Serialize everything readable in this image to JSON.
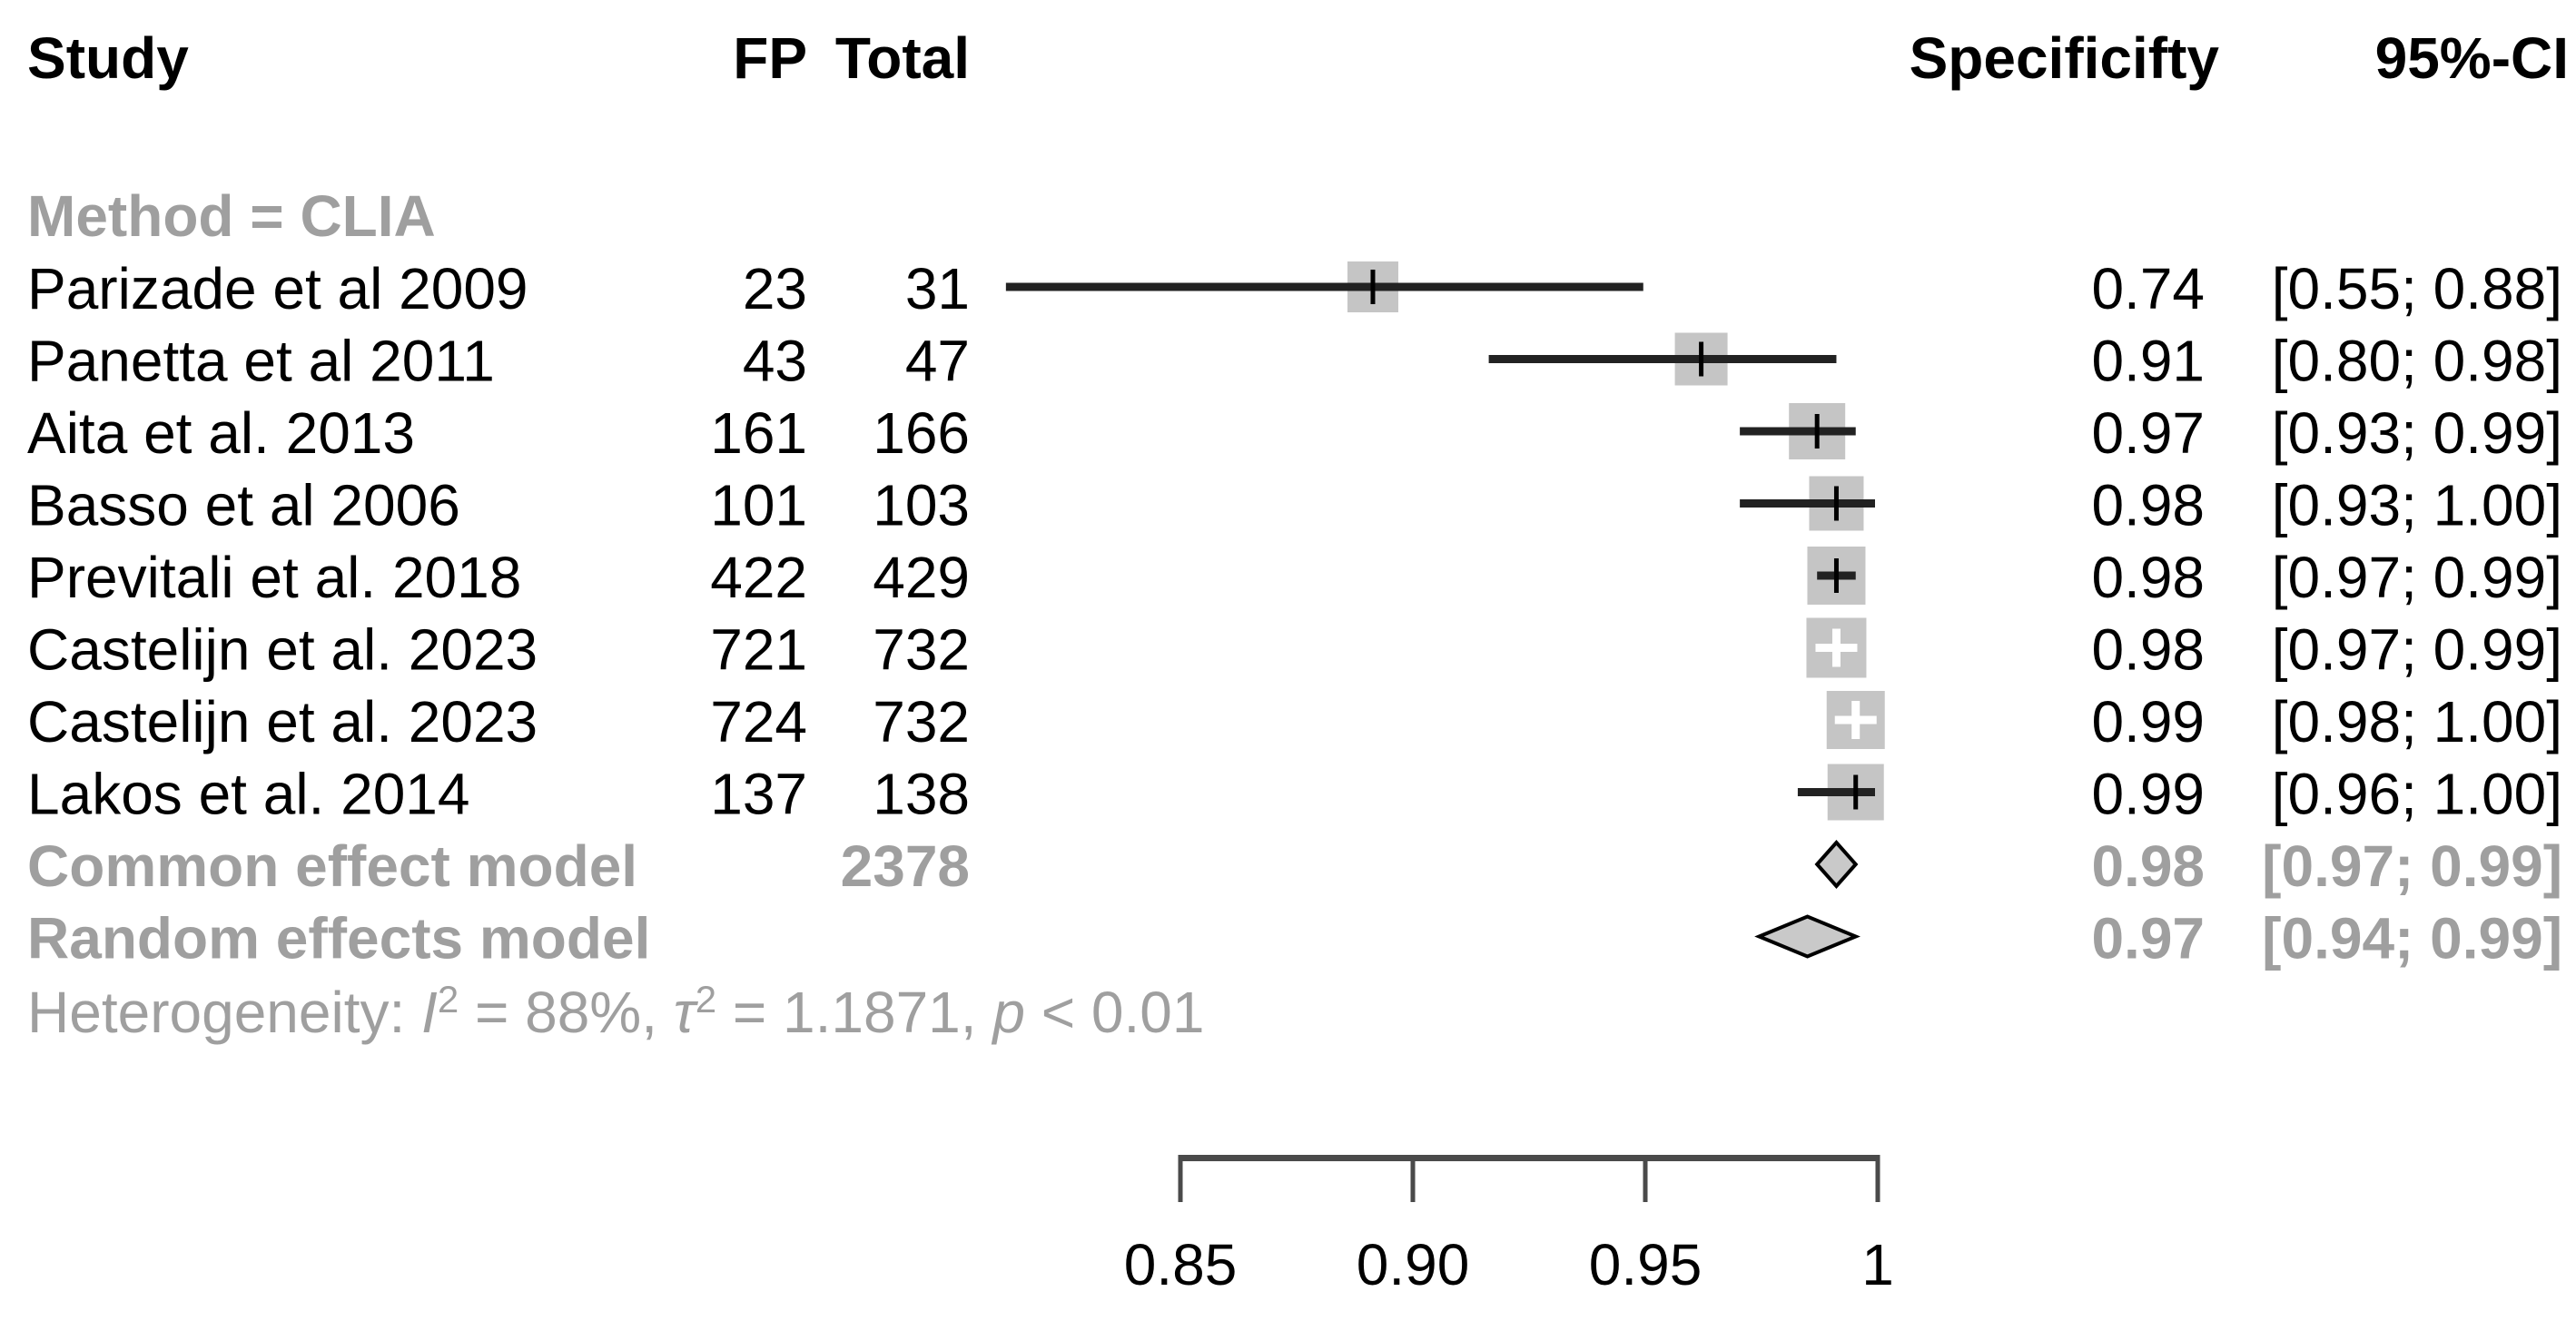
{
  "figure": {
    "kind": "forest-plot-of-specificity-meta-analysis",
    "background": "#ffffff"
  },
  "header": {
    "study": "Study",
    "fp": "FP",
    "total": "Total",
    "specificity": "Specificifty",
    "ci": "95%-CI"
  },
  "group_label": "Method = CLIA",
  "chart_data": {
    "type": "scatter",
    "subtype": "forest-plot",
    "title": "",
    "xlabel": "",
    "ylabel": "",
    "axis_range": [
      0.85,
      1.0
    ],
    "axis_tick_labels": [
      "0.85",
      "0.90",
      "0.95",
      "1"
    ],
    "axis_tick_values": [
      0.85,
      0.9,
      0.95,
      1.0
    ],
    "grid": false,
    "legend_position": "none",
    "studies": [
      {
        "study": "Parizade et al 2009",
        "fp": "23",
        "total": "31",
        "specificity": 0.74,
        "ci_lower": 0.55,
        "ci_upper": 0.88,
        "specificity_text": "0.74",
        "ci_text": "[0.55; 0.88]",
        "square_size": 56,
        "marker": "black-tick"
      },
      {
        "study": "Panetta et al 2011",
        "fp": "43",
        "total": "47",
        "specificity": 0.91,
        "ci_lower": 0.8,
        "ci_upper": 0.98,
        "specificity_text": "0.91",
        "ci_text": "[0.80; 0.98]",
        "square_size": 58,
        "marker": "black-tick"
      },
      {
        "study": "Aita et al. 2013",
        "fp": "161",
        "total": "166",
        "specificity": 0.97,
        "ci_lower": 0.93,
        "ci_upper": 0.99,
        "specificity_text": "0.97",
        "ci_text": "[0.93; 0.99]",
        "square_size": 62,
        "marker": "black-tick"
      },
      {
        "study": "Basso et al 2006",
        "fp": "101",
        "total": "103",
        "specificity": 0.98,
        "ci_lower": 0.93,
        "ci_upper": 1.0,
        "specificity_text": "0.98",
        "ci_text": "[0.93; 1.00]",
        "square_size": 60,
        "marker": "black-tick"
      },
      {
        "study": "Previtali et al. 2018",
        "fp": "422",
        "total": "429",
        "specificity": 0.98,
        "ci_lower": 0.97,
        "ci_upper": 0.99,
        "specificity_text": "0.98",
        "ci_text": "[0.97; 0.99]",
        "square_size": 64,
        "marker": "black-tick"
      },
      {
        "study": "Castelijn et al. 2023",
        "fp": "721",
        "total": "732",
        "specificity": 0.98,
        "ci_lower": 0.97,
        "ci_upper": 0.99,
        "specificity_text": "0.98",
        "ci_text": "[0.97; 0.99]",
        "square_size": 66,
        "marker": "white-cross"
      },
      {
        "study": "Castelijn et al. 2023",
        "fp": "724",
        "total": "732",
        "specificity": 0.99,
        "ci_lower": 0.98,
        "ci_upper": 1.0,
        "specificity_text": "0.99",
        "ci_text": "[0.98; 1.00]",
        "square_size": 64,
        "marker": "white-cross"
      },
      {
        "study": "Lakos et al. 2014",
        "fp": "137",
        "total": "138",
        "specificity": 0.99,
        "ci_lower": 0.96,
        "ci_upper": 1.0,
        "specificity_text": "0.99",
        "ci_text": "[0.96; 1.00]",
        "square_size": 62,
        "marker": "black-tick"
      }
    ],
    "summaries": [
      {
        "label": "Common effect model",
        "total": "2378",
        "specificity": 0.98,
        "ci_lower": 0.97,
        "ci_upper": 0.99,
        "specificity_text": "0.98",
        "ci_text": "[0.97; 0.99]",
        "shape": "diamond",
        "diamond_half_height": 24
      },
      {
        "label": "Random effects model",
        "total": "",
        "specificity": 0.97,
        "ci_lower": 0.94,
        "ci_upper": 0.99,
        "specificity_text": "0.97",
        "ci_text": "[0.94; 0.99]",
        "shape": "diamond",
        "diamond_half_height": 22
      }
    ],
    "heterogeneity": {
      "text_plain": "Heterogeneity: I² = 88%, τ² = 1.1871, p < 0.01",
      "parts": [
        {
          "t": "Heterogeneity: "
        },
        {
          "t": "I",
          "style": "italic"
        },
        {
          "t": "2",
          "style": "sup"
        },
        {
          "t": " = 88%, "
        },
        {
          "t": "τ",
          "style": "italic"
        },
        {
          "t": "2",
          "style": "sup"
        },
        {
          "t": " = 1.1871, "
        },
        {
          "t": "p",
          "style": "italic"
        },
        {
          "t": " < 0.01"
        }
      ]
    }
  },
  "colors": {
    "text": "#000000",
    "muted_text": "#9f9f9f",
    "square_fill": "#c5c5c5",
    "ci_line": "#222222",
    "point_tick": "#000000",
    "white_cross": "#ffffff",
    "axis": "#4a4a4a",
    "diamond_fill": "#c9c9c9",
    "diamond_stroke": "#000000",
    "background": "#ffffff"
  }
}
